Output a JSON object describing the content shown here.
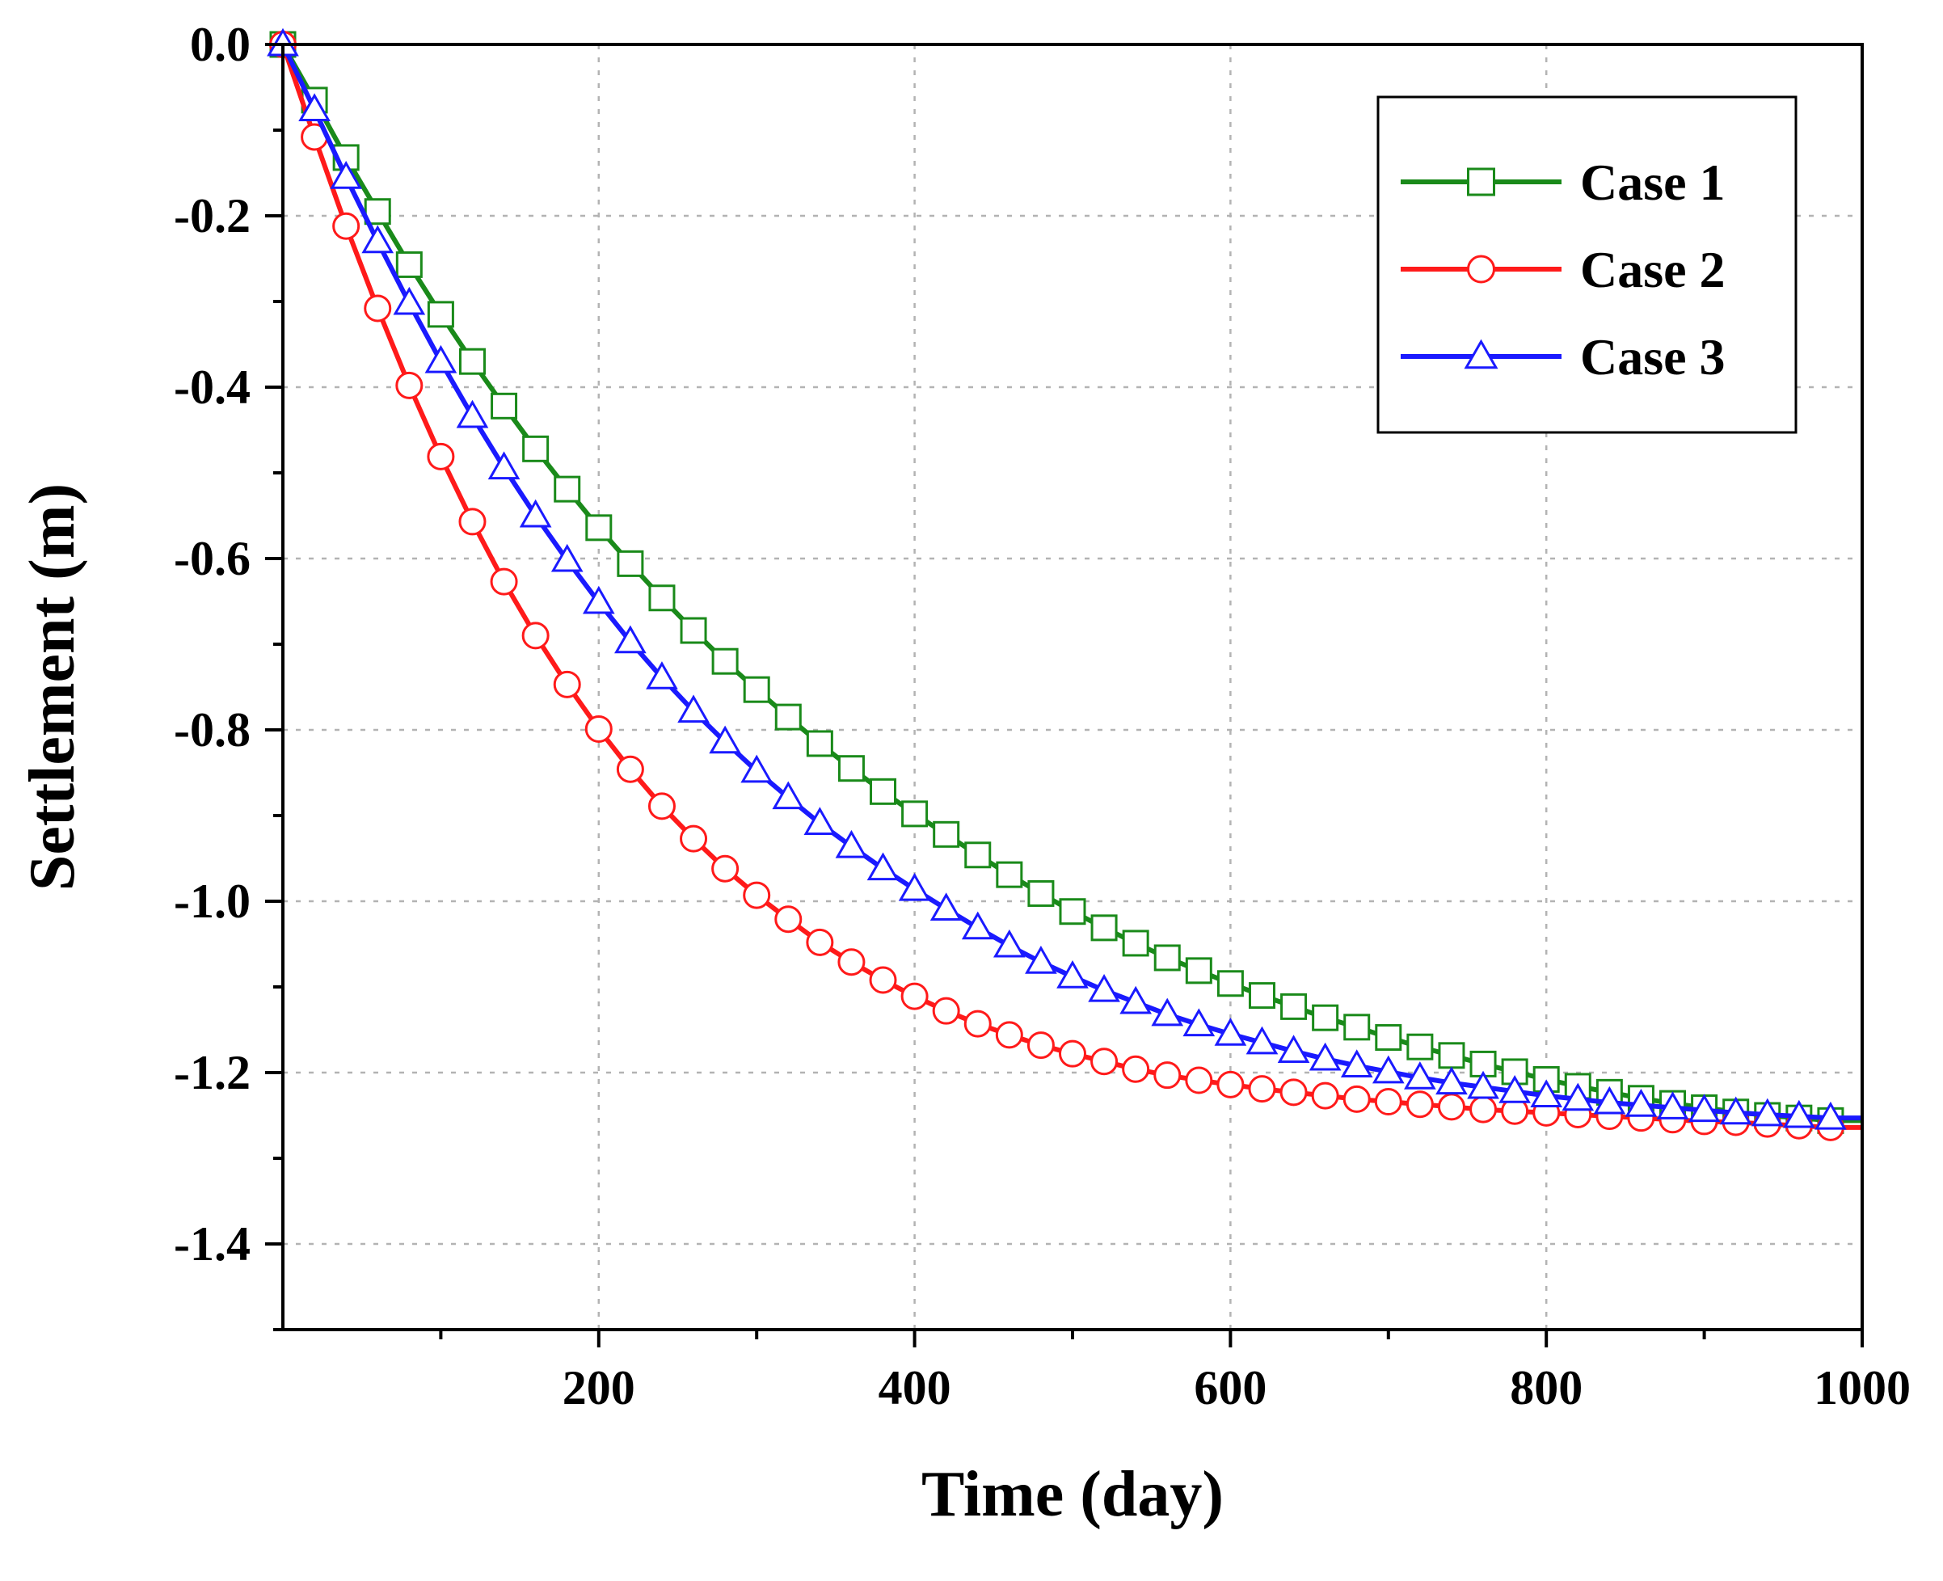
{
  "chart_data": {
    "type": "line",
    "xlabel": "Time (day)",
    "ylabel": "Settlement (m)",
    "xlim": [
      0,
      1000
    ],
    "ylim": [
      -1.5,
      0.0
    ],
    "x_ticks": [
      200,
      400,
      600,
      800,
      1000
    ],
    "x_tick_labels": [
      "200",
      "400",
      "600",
      "800",
      "1000"
    ],
    "y_ticks": [
      0.0,
      -0.2,
      -0.4,
      -0.6,
      -0.8,
      -1.0,
      -1.2,
      -1.4
    ],
    "y_tick_labels": [
      "0.0",
      "-0.2",
      "-0.4",
      "-0.6",
      "-0.8",
      "-1.0",
      "-1.2",
      "-1.4"
    ],
    "grid": true,
    "legend_position": "top-right",
    "x": [
      0,
      20,
      40,
      60,
      80,
      100,
      120,
      140,
      160,
      180,
      200,
      220,
      240,
      260,
      280,
      300,
      320,
      340,
      360,
      380,
      400,
      420,
      440,
      460,
      480,
      500,
      520,
      540,
      560,
      580,
      600,
      620,
      640,
      660,
      680,
      700,
      720,
      740,
      760,
      780,
      800,
      820,
      840,
      860,
      880,
      900,
      920,
      940,
      960,
      980
    ],
    "series": [
      {
        "name": "Case 1",
        "color": "#1a8a1a",
        "marker": "square",
        "values": [
          0.0,
          -0.065,
          -0.132,
          -0.195,
          -0.257,
          -0.315,
          -0.37,
          -0.422,
          -0.472,
          -0.519,
          -0.564,
          -0.606,
          -0.646,
          -0.684,
          -0.72,
          -0.753,
          -0.785,
          -0.816,
          -0.845,
          -0.872,
          -0.898,
          -0.922,
          -0.946,
          -0.969,
          -0.991,
          -1.012,
          -1.031,
          -1.049,
          -1.066,
          -1.081,
          -1.096,
          -1.11,
          -1.123,
          -1.136,
          -1.147,
          -1.159,
          -1.17,
          -1.18,
          -1.19,
          -1.199,
          -1.208,
          -1.216,
          -1.223,
          -1.23,
          -1.236,
          -1.241,
          -1.246,
          -1.25,
          -1.253,
          -1.256
        ]
      },
      {
        "name": "Case 2",
        "color": "#ff1a1a",
        "marker": "circle",
        "values": [
          0.0,
          -0.108,
          -0.212,
          -0.308,
          -0.398,
          -0.481,
          -0.557,
          -0.627,
          -0.69,
          -0.747,
          -0.799,
          -0.846,
          -0.889,
          -0.927,
          -0.962,
          -0.993,
          -1.021,
          -1.048,
          -1.071,
          -1.092,
          -1.111,
          -1.128,
          -1.143,
          -1.156,
          -1.168,
          -1.178,
          -1.187,
          -1.196,
          -1.203,
          -1.209,
          -1.214,
          -1.219,
          -1.223,
          -1.227,
          -1.231,
          -1.234,
          -1.237,
          -1.24,
          -1.243,
          -1.245,
          -1.247,
          -1.249,
          -1.251,
          -1.253,
          -1.255,
          -1.257,
          -1.258,
          -1.26,
          -1.262,
          -1.264
        ]
      },
      {
        "name": "Case 3",
        "color": "#1a1aff",
        "marker": "triangle",
        "values": [
          0.0,
          -0.076,
          -0.155,
          -0.23,
          -0.302,
          -0.37,
          -0.434,
          -0.494,
          -0.55,
          -0.602,
          -0.651,
          -0.697,
          -0.739,
          -0.778,
          -0.814,
          -0.848,
          -0.879,
          -0.909,
          -0.936,
          -0.962,
          -0.986,
          -1.009,
          -1.031,
          -1.052,
          -1.071,
          -1.088,
          -1.104,
          -1.118,
          -1.132,
          -1.144,
          -1.155,
          -1.165,
          -1.175,
          -1.184,
          -1.192,
          -1.199,
          -1.206,
          -1.212,
          -1.217,
          -1.222,
          -1.227,
          -1.231,
          -1.235,
          -1.238,
          -1.241,
          -1.244,
          -1.247,
          -1.249,
          -1.251,
          -1.253
        ]
      }
    ]
  }
}
